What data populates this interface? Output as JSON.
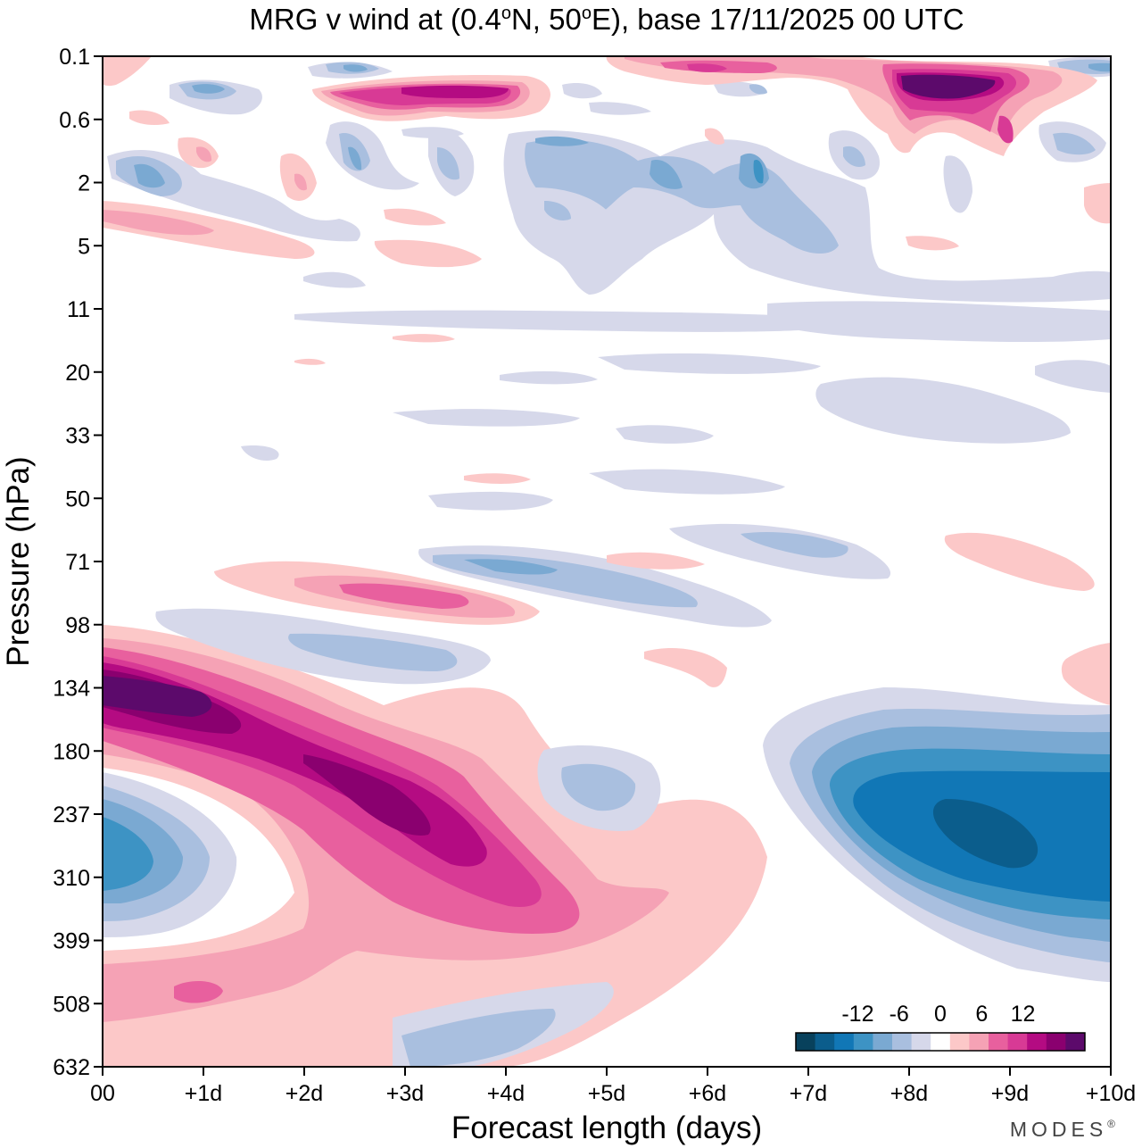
{
  "chart_data": {
    "type": "heatmap",
    "subtype": "filled-contour",
    "title_parts": [
      "MRG v wind at (0.4",
      "o",
      "N, 50",
      "o",
      "E),  base 17/11/2025  00 UTC"
    ],
    "xlabel": "Forecast length (days)",
    "ylabel": "Pressure (hPa)",
    "x_ticks": [
      "00",
      "+1d",
      "+2d",
      "+3d",
      "+4d",
      "+5d",
      "+6d",
      "+7d",
      "+8d",
      "+9d",
      "+10d"
    ],
    "x_range_days": [
      0,
      10
    ],
    "y_ticks": [
      "0.1",
      "0.6",
      "2",
      "5",
      "11",
      "20",
      "33",
      "50",
      "71",
      "98",
      "134",
      "180",
      "237",
      "310",
      "399",
      "508",
      "632"
    ],
    "y_range_hPa": [
      0.1,
      632
    ],
    "colorbar": {
      "tick_labels": [
        "-12",
        "-6",
        "0",
        "6",
        "12"
      ],
      "levels": [
        -18,
        -15,
        -12,
        -9,
        -6,
        -3,
        0,
        3,
        6,
        9,
        12,
        15,
        18
      ],
      "colors": [
        "#08415c",
        "#0b5d8c",
        "#1177b6",
        "#3d93c4",
        "#7aa9d2",
        "#a9bfdf",
        "#d6d8ea",
        "#ffffff",
        "#fcc8c8",
        "#f5a2b5",
        "#e8609e",
        "#d83a95",
        "#b40b82",
        "#8a006f",
        "#5c0a6b"
      ]
    },
    "features": [
      {
        "sign": "positive",
        "max_ms": 18,
        "day_range": [
          0,
          4.6
        ],
        "hPa_range": [
          98,
          399
        ],
        "note": "tilted positive band, max near day 0.5 at 134 hPa"
      },
      {
        "sign": "negative",
        "min_ms": -18,
        "day_range": [
          6.6,
          10
        ],
        "hPa_range": [
          134,
          460
        ],
        "note": "negative region, min near day 8.6 at 237 hPa"
      },
      {
        "sign": "negative",
        "min_ms": -9,
        "day_range": [
          0,
          1.3
        ],
        "hPa_range": [
          180,
          399
        ]
      },
      {
        "sign": "positive",
        "max_ms": 18,
        "day_range": [
          7.7,
          9.3
        ],
        "hPa_range": [
          0.1,
          1
        ],
        "note": "stratospheric positive max near day 8.5"
      },
      {
        "sign": "positive",
        "max_ms": 12,
        "day_range": [
          2.3,
          4.4
        ],
        "hPa_range": [
          0.2,
          0.7
        ]
      }
    ]
  },
  "brand": "MODES",
  "brand_mark": "®"
}
